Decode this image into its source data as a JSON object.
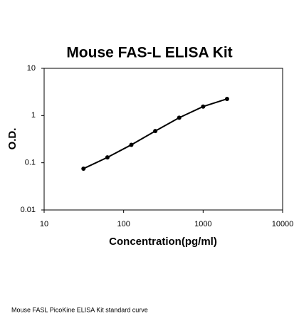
{
  "chart_data": {
    "type": "scatter",
    "title": "Mouse FAS-L ELISA Kit",
    "x_label": "Concentration(pg/ml)",
    "y_label": "O.D.",
    "x": [
      31.25,
      62.5,
      125,
      250,
      500,
      1000,
      2000
    ],
    "values": [
      0.075,
      0.13,
      0.24,
      0.47,
      0.9,
      1.55,
      2.25
    ],
    "color": "#000000",
    "line": true,
    "xscale": "log",
    "yscale": "log",
    "xlim": [
      10,
      10000
    ],
    "xticks": [
      10,
      100,
      1000,
      10000
    ],
    "ylim": [
      0.01,
      10
    ],
    "yticks": [
      0.01,
      0.1,
      1,
      10
    ]
  },
  "caption": "Mouse FASL PicoKine ELISA Kit standard curve"
}
